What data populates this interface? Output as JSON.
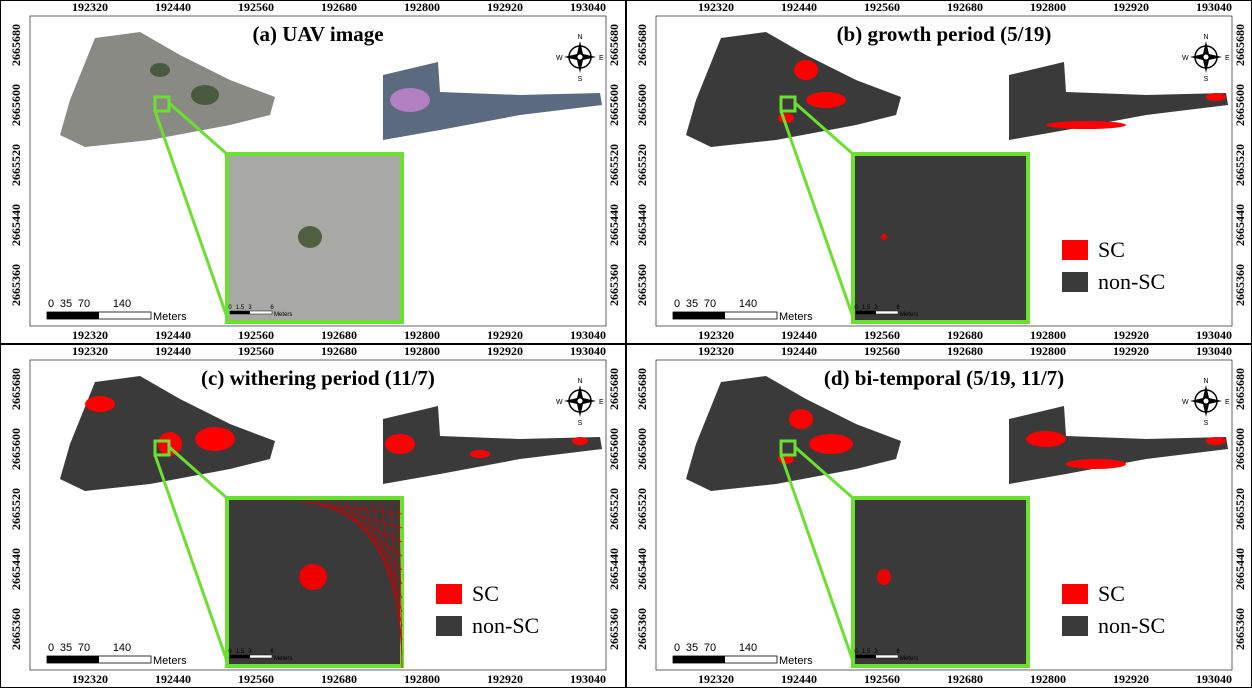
{
  "panels": [
    {
      "title": "(a) UAV image"
    },
    {
      "title": "(b) growth period (5/19)",
      "legend": [
        "SC",
        "non-SC"
      ]
    },
    {
      "title": "(c) withering period (11/7)",
      "legend": [
        "SC",
        "non-SC"
      ]
    },
    {
      "title": "(d) bi-temporal (5/19, 11/7)",
      "legend": [
        "SC",
        "non-SC"
      ]
    }
  ],
  "x_ticks": [
    "192320",
    "192440",
    "192560",
    "192680",
    "192800",
    "192920",
    "193040"
  ],
  "y_ticks": [
    "2665680",
    "2665600",
    "2665520",
    "2665440",
    "2665360"
  ],
  "scale_bar": {
    "labels": [
      "0",
      "35",
      "70",
      "140"
    ],
    "unit": "Meters"
  },
  "inset_scale_bar": {
    "labels": [
      "0",
      "1.5",
      "3",
      "6"
    ],
    "unit": "Meters"
  },
  "compass": {
    "n": "N",
    "s": "S",
    "e": "E",
    "w": "W"
  }
}
